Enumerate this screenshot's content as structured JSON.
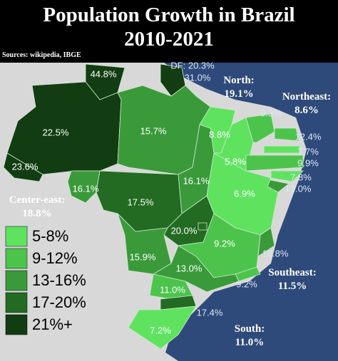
{
  "title": {
    "line1": "Population Growth in Brazil",
    "line2": "2010-2021"
  },
  "source": "Sources: wikipedia, IBGE",
  "states": [
    {
      "label": "44.8%",
      "color": "#123d12"
    },
    {
      "label": "31.0%",
      "color": "#123d12"
    },
    {
      "label": "22.5%",
      "color": "#123d12"
    },
    {
      "label": "23.6%",
      "color": "#123d12"
    },
    {
      "label": "15.7%",
      "color": "#3a9a3a"
    },
    {
      "label": "16.1%",
      "color": "#3a9a3a"
    },
    {
      "label": "17.5%",
      "color": "#236b23"
    },
    {
      "label": "16.1%",
      "color": "#3a9a3a"
    },
    {
      "label": "8.8%",
      "color": "#5fe35f"
    },
    {
      "label": "5.8%",
      "color": "#5fe35f"
    },
    {
      "label": "9.3%",
      "color": "#4cc44c"
    },
    {
      "label": "12.4%",
      "color": "#4cc44c"
    },
    {
      "label": "7.7%",
      "color": "#5fe35f"
    },
    {
      "label": "9.9%",
      "color": "#4cc44c"
    },
    {
      "label": "7.8%",
      "color": "#5fe35f"
    },
    {
      "label": "13.0%",
      "color": "#3a9a3a"
    },
    {
      "label": "6.9%",
      "color": "#5fe35f"
    },
    {
      "label": "20.0%",
      "color": "#236b23"
    },
    {
      "label": "15.9%",
      "color": "#3a9a3a"
    },
    {
      "label": "9.2%",
      "color": "#4cc44c"
    },
    {
      "label": "16.8%",
      "color": "#3a9a3a"
    },
    {
      "label": "9.2%",
      "color": "#4cc44c"
    },
    {
      "label": "13.0%",
      "color": "#3a9a3a"
    },
    {
      "label": "11.0%",
      "color": "#4cc44c"
    },
    {
      "label": "17.4%",
      "color": "#236b23"
    },
    {
      "label": "7.2%",
      "color": "#5fe35f"
    },
    {
      "label": "DF: 20.3%",
      "color": "#236b23"
    }
  ],
  "regions": [
    {
      "name": "North:",
      "value": "19.1%"
    },
    {
      "name": "Northeast:",
      "value": "8.6%"
    },
    {
      "name": "Center-east:",
      "value": "18.8%"
    },
    {
      "name": "Southeast:",
      "value": "11.5%"
    },
    {
      "name": "South:",
      "value": "11.0%"
    }
  ],
  "legend": [
    {
      "label": "5-8%",
      "color": "#5fe35f"
    },
    {
      "label": "9-12%",
      "color": "#4cc44c"
    },
    {
      "label": "13-16%",
      "color": "#3a9a3a"
    },
    {
      "label": "17-20%",
      "color": "#236b23"
    },
    {
      "label": "21%+",
      "color": "#123d12"
    }
  ]
}
